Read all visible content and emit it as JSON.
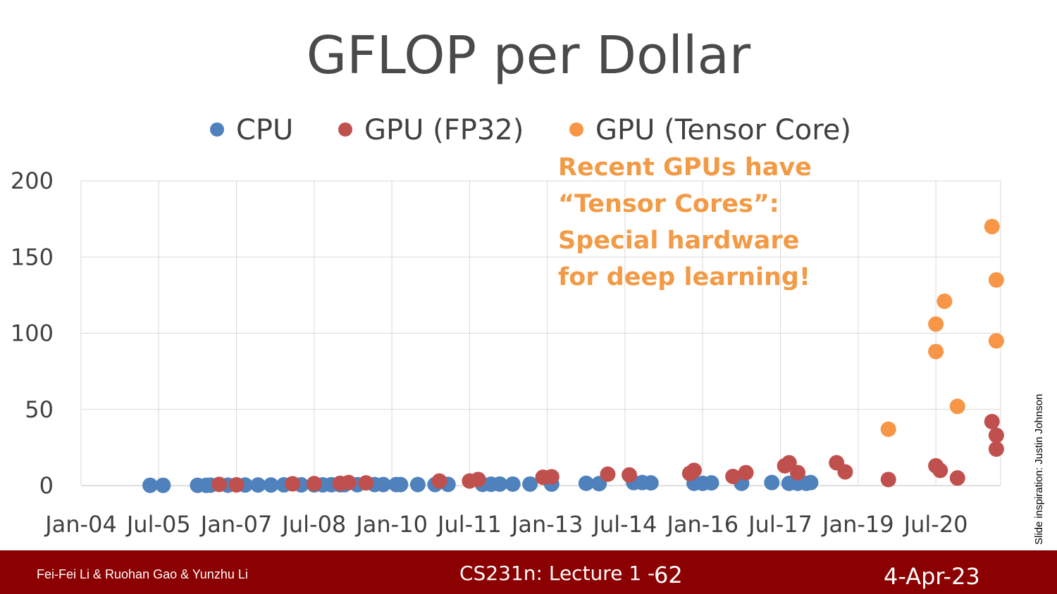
{
  "slide": {
    "annotation_lines": [
      "Recent GPUs have",
      "“Tensor Cores”:",
      "Special hardware",
      "for deep learning!"
    ],
    "credit": "Slide inspiration: Justin Johnson"
  },
  "footer": {
    "authors": "Fei-Fei Li & Ruohan Gao & Yunzhu Li",
    "lecture": "CS231n: Lecture 1 -",
    "page": "62",
    "date": "4-Apr-23"
  },
  "colors": {
    "cpu": "#4f81bd",
    "gpu_fp32": "#c0504d",
    "gpu_tensor": "#f79646",
    "annotation": "#f29a45",
    "footer_bg": "#8b0000"
  },
  "chart_data": {
    "type": "scatter",
    "title": "GFLOP per Dollar",
    "xlabel": "",
    "ylabel": "",
    "ylim": [
      0,
      200
    ],
    "xlim": [
      "2004-01",
      "2021-10"
    ],
    "x_ticks": [
      "Jan-04",
      "Jul-05",
      "Jan-07",
      "Jul-08",
      "Jan-10",
      "Jul-11",
      "Jan-13",
      "Jul-14",
      "Jan-16",
      "Jul-17",
      "Jan-19",
      "Jul-20"
    ],
    "y_ticks": [
      0,
      50,
      100,
      150,
      200
    ],
    "grid": true,
    "legend_position": "top",
    "series": [
      {
        "name": "CPU",
        "points": [
          {
            "x": "2005-05",
            "y": 0.2
          },
          {
            "x": "2005-08",
            "y": 0.2
          },
          {
            "x": "2006-04",
            "y": 0.2
          },
          {
            "x": "2006-06",
            "y": 0.2
          },
          {
            "x": "2006-07",
            "y": 0.3
          },
          {
            "x": "2006-11",
            "y": 0.3
          },
          {
            "x": "2007-03",
            "y": 0.4
          },
          {
            "x": "2007-06",
            "y": 0.4
          },
          {
            "x": "2007-09",
            "y": 0.4
          },
          {
            "x": "2007-12",
            "y": 0.5
          },
          {
            "x": "2008-04",
            "y": 0.5
          },
          {
            "x": "2008-07",
            "y": 0.5
          },
          {
            "x": "2008-09",
            "y": 0.5
          },
          {
            "x": "2008-11",
            "y": 0.6
          },
          {
            "x": "2009-01",
            "y": 0.6
          },
          {
            "x": "2009-02",
            "y": 0.6
          },
          {
            "x": "2009-05",
            "y": 0.6
          },
          {
            "x": "2009-09",
            "y": 0.7
          },
          {
            "x": "2009-11",
            "y": 0.7
          },
          {
            "x": "2010-02",
            "y": 0.7
          },
          {
            "x": "2010-03",
            "y": 0.7
          },
          {
            "x": "2010-07",
            "y": 0.7
          },
          {
            "x": "2010-11",
            "y": 0.7
          },
          {
            "x": "2011-02",
            "y": 0.8
          },
          {
            "x": "2011-10",
            "y": 0.8
          },
          {
            "x": "2011-12",
            "y": 0.9
          },
          {
            "x": "2012-02",
            "y": 1
          },
          {
            "x": "2012-05",
            "y": 1
          },
          {
            "x": "2012-09",
            "y": 1
          },
          {
            "x": "2013-02",
            "y": 1
          },
          {
            "x": "2013-10",
            "y": 1.5
          },
          {
            "x": "2014-01",
            "y": 1.3
          },
          {
            "x": "2014-09",
            "y": 2
          },
          {
            "x": "2014-11",
            "y": 2
          },
          {
            "x": "2015-01",
            "y": 1.8
          },
          {
            "x": "2015-11",
            "y": 1.5
          },
          {
            "x": "2016-01",
            "y": 1.5
          },
          {
            "x": "2016-03",
            "y": 1.8
          },
          {
            "x": "2016-10",
            "y": 1.5
          },
          {
            "x": "2017-05",
            "y": 2
          },
          {
            "x": "2017-09",
            "y": 1.5
          },
          {
            "x": "2017-11",
            "y": 1.5
          },
          {
            "x": "2018-01",
            "y": 1.5
          },
          {
            "x": "2018-02",
            "y": 2
          }
        ]
      },
      {
        "name": "GPU (FP32)",
        "points": [
          {
            "x": "2006-09",
            "y": 0.8
          },
          {
            "x": "2007-01",
            "y": 0.5
          },
          {
            "x": "2008-02",
            "y": 1.2
          },
          {
            "x": "2008-07",
            "y": 1.3
          },
          {
            "x": "2009-01",
            "y": 1.5
          },
          {
            "x": "2009-03",
            "y": 2
          },
          {
            "x": "2009-07",
            "y": 1.8
          },
          {
            "x": "2010-12",
            "y": 3
          },
          {
            "x": "2011-07",
            "y": 3
          },
          {
            "x": "2011-09",
            "y": 4
          },
          {
            "x": "2012-12",
            "y": 5.5
          },
          {
            "x": "2013-02",
            "y": 5.8
          },
          {
            "x": "2014-03",
            "y": 7.5
          },
          {
            "x": "2014-08",
            "y": 7
          },
          {
            "x": "2015-10",
            "y": 8
          },
          {
            "x": "2015-11",
            "y": 10
          },
          {
            "x": "2016-08",
            "y": 6
          },
          {
            "x": "2016-11",
            "y": 8.5
          },
          {
            "x": "2017-08",
            "y": 13
          },
          {
            "x": "2017-09",
            "y": 15
          },
          {
            "x": "2017-11",
            "y": 8.5
          },
          {
            "x": "2018-08",
            "y": 15
          },
          {
            "x": "2018-10",
            "y": 9
          },
          {
            "x": "2019-08",
            "y": 4
          },
          {
            "x": "2020-07",
            "y": 13
          },
          {
            "x": "2020-08",
            "y": 10
          },
          {
            "x": "2020-12",
            "y": 5
          },
          {
            "x": "2021-08",
            "y": 42
          },
          {
            "x": "2021-09",
            "y": 33
          },
          {
            "x": "2021-09",
            "y": 24
          }
        ]
      },
      {
        "name": "GPU (Tensor Core)",
        "points": [
          {
            "x": "2019-08",
            "y": 37
          },
          {
            "x": "2020-07",
            "y": 88
          },
          {
            "x": "2020-07",
            "y": 106
          },
          {
            "x": "2020-09",
            "y": 121
          },
          {
            "x": "2020-12",
            "y": 52
          },
          {
            "x": "2021-08",
            "y": 170
          },
          {
            "x": "2021-09",
            "y": 135
          },
          {
            "x": "2021-09",
            "y": 95
          }
        ]
      }
    ]
  }
}
